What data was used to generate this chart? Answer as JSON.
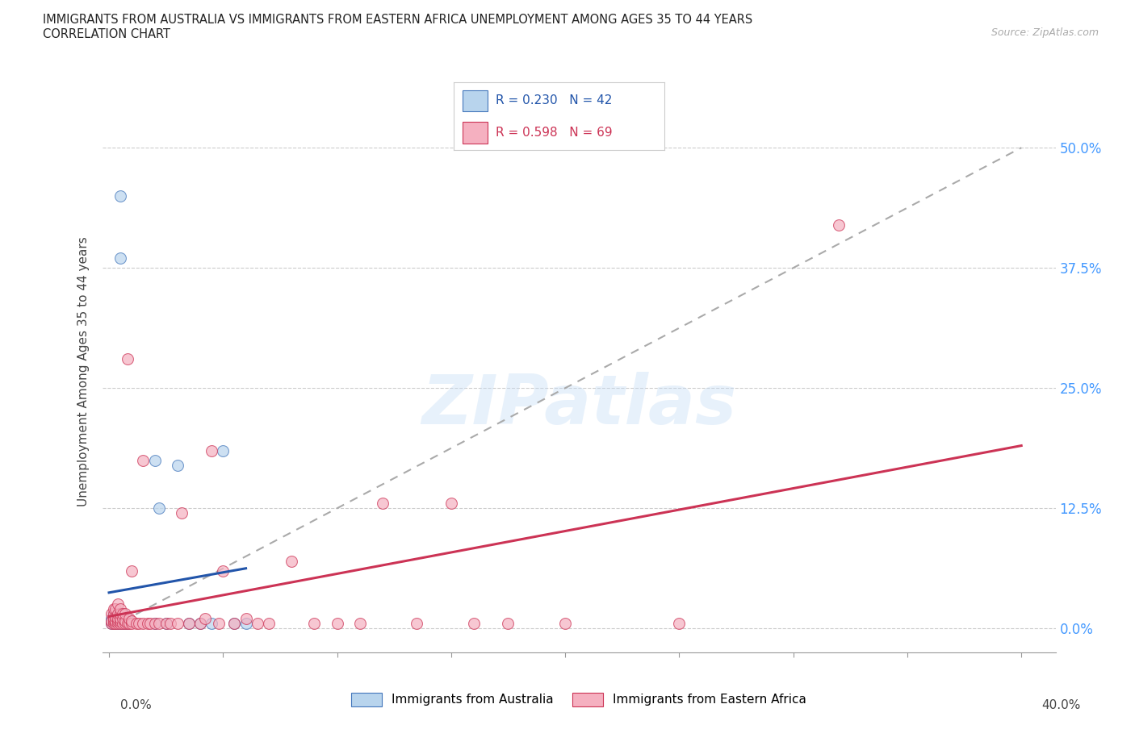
{
  "title_line1": "IMMIGRANTS FROM AUSTRALIA VS IMMIGRANTS FROM EASTERN AFRICA UNEMPLOYMENT AMONG AGES 35 TO 44 YEARS",
  "title_line2": "CORRELATION CHART",
  "source": "Source: ZipAtlas.com",
  "ylabel": "Unemployment Among Ages 35 to 44 years",
  "australia_color": "#b8d4ed",
  "australia_edge_color": "#4477bb",
  "eastern_africa_color": "#f5b0c0",
  "eastern_africa_edge_color": "#cc3355",
  "dashed_line_color": "#aaaaaa",
  "blue_line_color": "#2255aa",
  "pink_line_color": "#cc3355",
  "right_tick_color": "#4499ff",
  "legend_r_australia": "R = 0.230",
  "legend_n_australia": "N = 42",
  "legend_r_eastern": "R = 0.598",
  "legend_n_eastern": "N = 69",
  "watermark": "ZIPatlas",
  "background_color": "#ffffff",
  "ytick_labels": [
    "0.0%",
    "12.5%",
    "25.0%",
    "37.5%",
    "50.0%"
  ],
  "ytick_values": [
    0.0,
    0.125,
    0.25,
    0.375,
    0.5
  ],
  "xlim": [
    -0.003,
    0.415
  ],
  "ylim": [
    -0.025,
    0.56
  ]
}
